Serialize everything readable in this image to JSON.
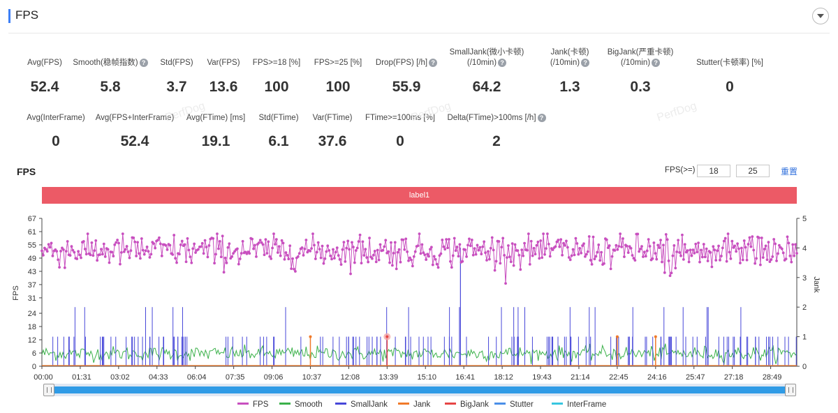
{
  "header": {
    "title": "FPS"
  },
  "metrics_row1": [
    {
      "label": "Avg(FPS)",
      "value": "52.4",
      "help": false
    },
    {
      "label": "Smooth(稳帧指数)",
      "value": "5.8",
      "help": true
    },
    {
      "label": "Std(FPS)",
      "value": "3.7",
      "help": false
    },
    {
      "label": "Var(FPS)",
      "value": "13.6",
      "help": false
    },
    {
      "label": "FPS>=18 [%]",
      "value": "100",
      "help": false
    },
    {
      "label": "FPS>=25 [%]",
      "value": "100",
      "help": false
    },
    {
      "label": "Drop(FPS) [/h]",
      "value": "55.9",
      "help": true
    },
    {
      "label": "SmallJank(微小卡顿)",
      "label2": "(/10min)",
      "value": "64.2",
      "help": true
    },
    {
      "label": "Jank(卡顿)",
      "label2": "(/10min)",
      "value": "1.3",
      "help": true
    },
    {
      "label": "BigJank(严重卡顿)",
      "label2": "(/10min)",
      "value": "0.3",
      "help": true
    },
    {
      "label": "Stutter(卡顿率) [%]",
      "value": "0",
      "help": false
    }
  ],
  "metrics_row2": [
    {
      "label": "Avg(InterFrame)",
      "value": "0",
      "help": false
    },
    {
      "label": "Avg(FPS+InterFrame)",
      "value": "52.4",
      "help": false
    },
    {
      "label": "Avg(FTime) [ms]",
      "value": "19.1",
      "help": false
    },
    {
      "label": "Std(FTime)",
      "value": "6.1",
      "help": false
    },
    {
      "label": "Var(FTime)",
      "value": "37.6",
      "help": false
    },
    {
      "label": "FTime>=100ms [%]",
      "value": "0",
      "help": false
    },
    {
      "label": "Delta(FTime)>100ms [/h]",
      "value": "2",
      "help": true
    }
  ],
  "watermark": "PerfDog",
  "chart_section": {
    "title": "FPS",
    "threshold_label": "FPS(>=)",
    "threshold1": "18",
    "threshold2": "25",
    "reset_label": "重置",
    "label_bar": "label1"
  },
  "chart_data": {
    "type": "line",
    "x_ticks": [
      "00:00",
      "01:31",
      "03:02",
      "04:33",
      "06:04",
      "07:35",
      "09:06",
      "10:37",
      "12:08",
      "13:39",
      "15:10",
      "16:41",
      "18:12",
      "19:43",
      "21:14",
      "22:45",
      "24:16",
      "25:47",
      "27:18",
      "28:49"
    ],
    "y_left": {
      "label": "FPS",
      "ticks": [
        0,
        6,
        12,
        18,
        24,
        31,
        37,
        43,
        49,
        55,
        61,
        67
      ],
      "range": [
        0,
        67
      ]
    },
    "y_right": {
      "label": "Jank",
      "ticks": [
        0,
        1,
        2,
        3,
        4,
        5
      ],
      "range": [
        0,
        5
      ]
    },
    "duration_seconds": 1791,
    "series": [
      {
        "name": "FPS",
        "color": "#c84fbf",
        "axis": "left",
        "approx_mean": 52.4,
        "approx_std": 3.7,
        "min": 36,
        "max": 60
      },
      {
        "name": "Smooth",
        "color": "#3bb14a",
        "axis": "left",
        "approx_mean": 5.8
      },
      {
        "name": "SmallJank",
        "color": "#4747d9",
        "axis": "right",
        "typical_values": [
          1,
          2
        ],
        "notes": "many 1-unit spikes, several 2-unit spikes, one 4-unit spike near 16:41"
      },
      {
        "name": "Jank",
        "color": "#f07a2a",
        "axis": "right",
        "event_times": [
          "10:37",
          "22:45",
          "24:16"
        ],
        "value": 1
      },
      {
        "name": "BigJank",
        "color": "#e64545",
        "axis": "right",
        "event_times": [
          "13:39"
        ],
        "value": 1
      },
      {
        "name": "Stutter",
        "color": "#4a8fe8",
        "axis": "right",
        "values": [
          0
        ]
      },
      {
        "name": "InterFrame",
        "color": "#37c6e0",
        "axis": "right",
        "values": [
          0
        ]
      }
    ],
    "legend": "bottom-center",
    "grid": false
  },
  "legend_items": [
    {
      "name": "FPS",
      "color": "#c84fbf"
    },
    {
      "name": "Smooth",
      "color": "#3bb14a"
    },
    {
      "name": "SmallJank",
      "color": "#4747d9"
    },
    {
      "name": "Jank",
      "color": "#f07a2a"
    },
    {
      "name": "BigJank",
      "color": "#e64545"
    },
    {
      "name": "Stutter",
      "color": "#4a8fe8"
    },
    {
      "name": "InterFrame",
      "color": "#37c6e0"
    }
  ]
}
